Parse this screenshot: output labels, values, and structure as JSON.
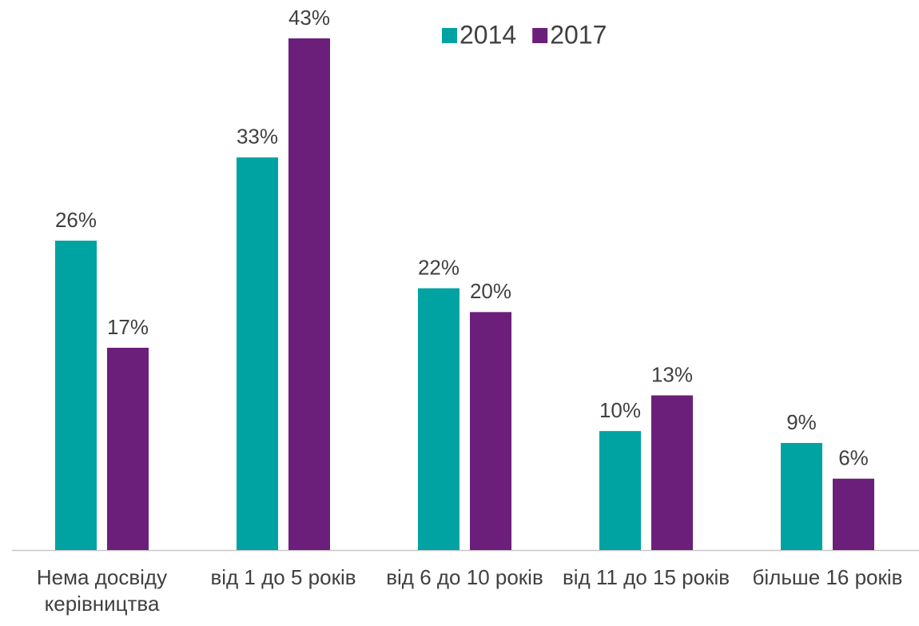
{
  "chart_data": {
    "type": "bar",
    "categories": [
      "Нема досвіду керівництва",
      "від 1 до 5 років",
      "від 6 до 10 років",
      "від 11 до 15 років",
      "більше 16 років"
    ],
    "series": [
      {
        "name": "2014",
        "color": "#00a3a1",
        "values": [
          26,
          33,
          22,
          10,
          9
        ],
        "value_labels": [
          "26%",
          "33%",
          "22%",
          "10%",
          "9%"
        ]
      },
      {
        "name": "2017",
        "color": "#6b1f7a",
        "values": [
          17,
          43,
          20,
          13,
          6
        ],
        "value_labels": [
          "17%",
          "43%",
          "20%",
          "13%",
          "6%"
        ]
      }
    ],
    "legend": "top"
  }
}
